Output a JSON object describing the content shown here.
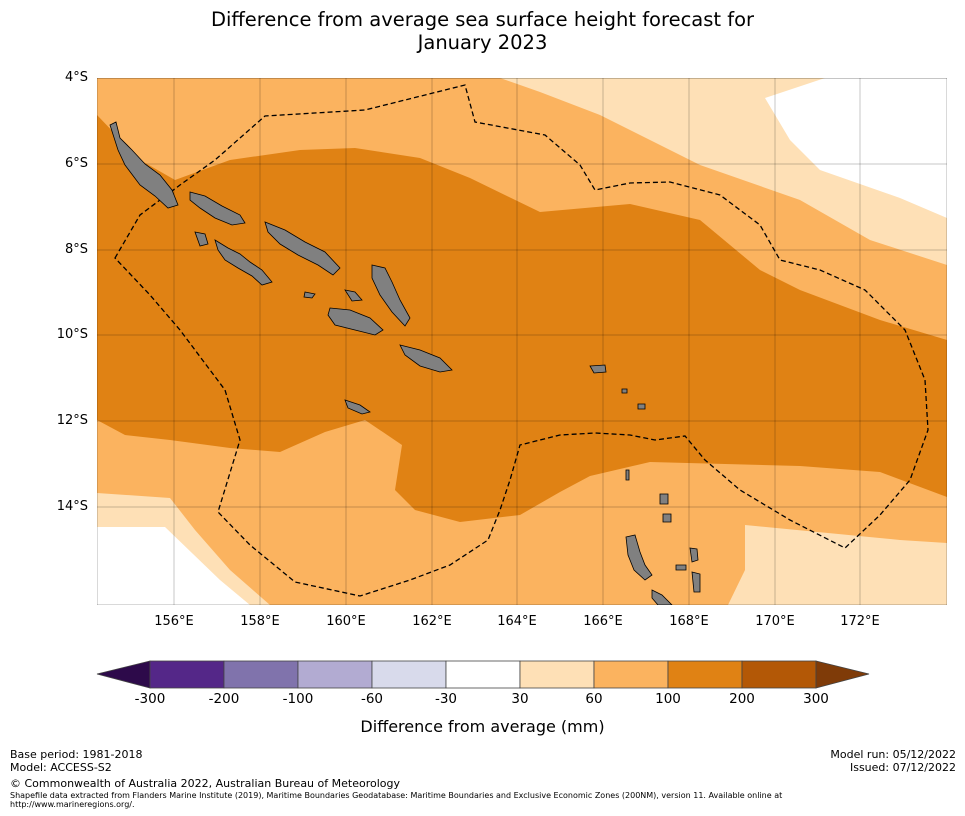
{
  "title_line1": "Difference from average sea surface height forecast for",
  "title_line2": "January 2023",
  "lat_labels": [
    "4°S",
    "6°S",
    "8°S",
    "10°S",
    "12°S",
    "14°S"
  ],
  "lon_labels": [
    "156°E",
    "158°E",
    "160°E",
    "162°E",
    "164°E",
    "166°E",
    "168°E",
    "170°E",
    "172°E"
  ],
  "colorbar": {
    "labels": [
      "-300",
      "-200",
      "-100",
      "-60",
      "-30",
      "30",
      "60",
      "100",
      "200",
      "300"
    ],
    "colors": [
      "#2d0a4a",
      "#542788",
      "#8073ac",
      "#b2abd2",
      "#d8daeb",
      "#ffffff",
      "#fee0b6",
      "#fbb35f",
      "#e08214",
      "#b35806",
      "#7f3b08"
    ],
    "title": "Difference from average (mm)"
  },
  "colors": {
    "land": "#808080",
    "band_30_60": "#fee0b6",
    "band_60_100": "#fbb35f",
    "band_100_200": "#e08214"
  },
  "footer": {
    "base_period": "Base period: 1981-2018",
    "model": "Model: ACCESS-S2",
    "model_run": "Model run: 05/12/2022",
    "issued": "Issued: 07/12/2022",
    "copyright": "© Commonwealth of Australia 2022, Australian Bureau of Meteorology",
    "shapefile_line1": "Shapefile data extracted from Flanders Marine Institute (2019), Maritime Boundaries Geodatabase: Maritime Boundaries and Exclusive Economic Zones (200NM), version 11. Available online at",
    "shapefile_line2": "http://www.marineregions.org/."
  }
}
